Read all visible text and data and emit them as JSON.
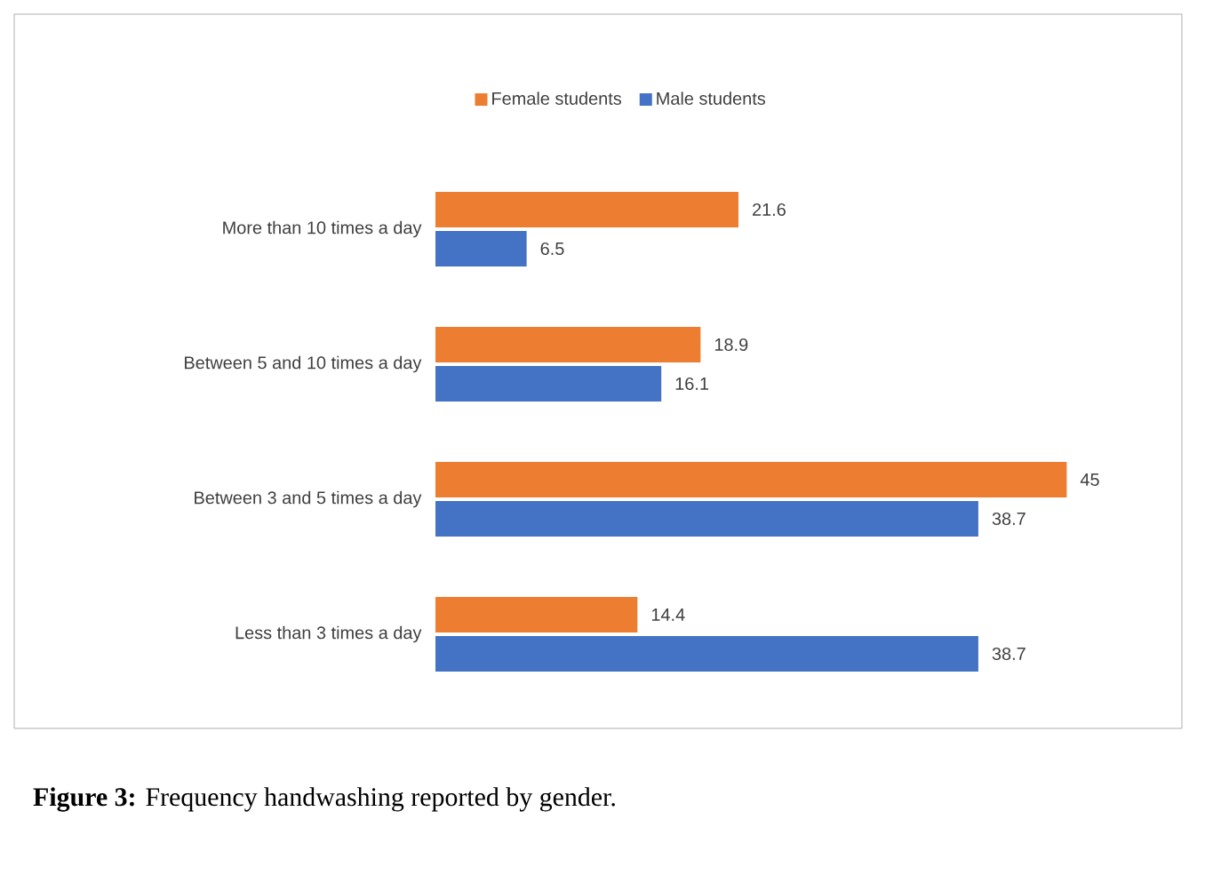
{
  "chart_data": {
    "type": "bar",
    "orientation": "horizontal",
    "categories": [
      "More than 10 times a day",
      "Between 5 and 10 times a day",
      "Between 3 and 5 times a day",
      "Less than 3 times a day"
    ],
    "series": [
      {
        "name": "Female students",
        "color": "#ed7d31",
        "values": [
          21.6,
          18.9,
          45,
          14.4
        ]
      },
      {
        "name": "Male students",
        "color": "#4472c4",
        "values": [
          6.5,
          16.1,
          38.7,
          38.7
        ]
      }
    ],
    "data_labels": true,
    "legend": "top",
    "annotations": [
      "**Figure 3:** Frequency handwashing reported by gender."
    ]
  }
}
